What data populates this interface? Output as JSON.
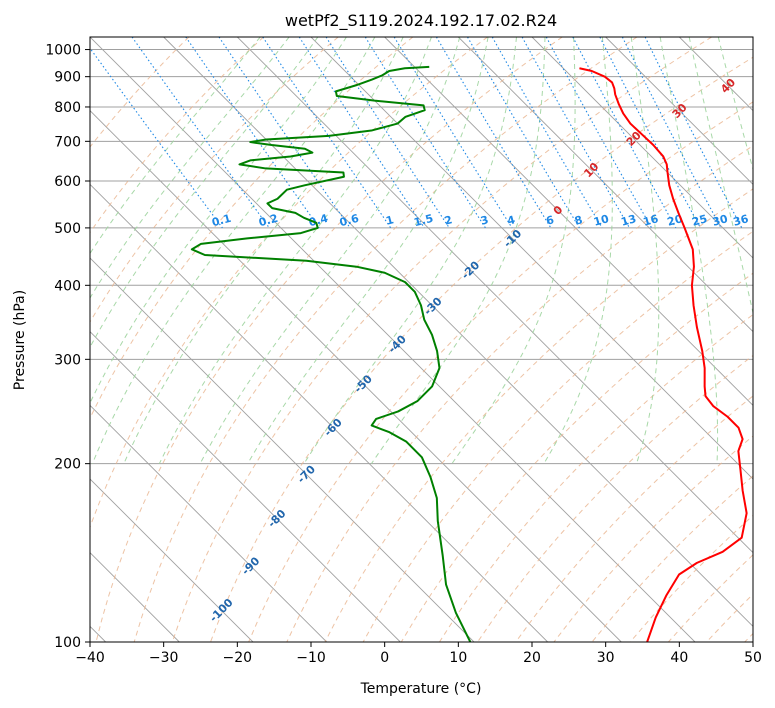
{
  "chart_data": {
    "type": "line",
    "title": "wetPf2_S119.2024.192.17.02.R24",
    "xlabel": "Temperature (°C)",
    "ylabel": "Pressure (hPa)",
    "xlim": [
      -40,
      50
    ],
    "ylim": [
      1050,
      100
    ],
    "yscale": "log",
    "skew": 35,
    "grid": true,
    "xticks": [
      -40,
      -30,
      -20,
      -10,
      0,
      10,
      20,
      30,
      40,
      50
    ],
    "yticks": [
      100,
      200,
      300,
      400,
      500,
      600,
      700,
      800,
      900,
      1000
    ],
    "colors": {
      "temperature": "#ff0000",
      "dewpoint": "#008000",
      "dry_adiabat": "#e8b48f",
      "moist_adiabat": "#9fd49f",
      "mixing_ratio": "#1e88e5",
      "grid": "#a0a0a0",
      "label_dry": "#2166ac",
      "label_moist": "#d62728",
      "label_mixing": "#1e88e5"
    },
    "series": [
      {
        "points": [
          [
            930,
            22.2
          ],
          [
            920,
            23.5
          ],
          [
            900,
            24.5
          ],
          [
            880,
            24.7
          ],
          [
            860,
            24.2
          ],
          [
            840,
            23.5
          ],
          [
            810,
            22.7
          ],
          [
            780,
            22.0
          ],
          [
            750,
            21.6
          ],
          [
            720,
            21.7
          ],
          [
            690,
            21.8
          ],
          [
            660,
            21.6
          ],
          [
            640,
            21.0
          ],
          [
            620,
            20.0
          ],
          [
            590,
            18.5
          ],
          [
            560,
            17.2
          ],
          [
            530,
            16.0
          ],
          [
            500,
            14.8
          ],
          [
            460,
            13.0
          ],
          [
            430,
            10.8
          ],
          [
            400,
            8.0
          ],
          [
            370,
            5.5
          ],
          [
            340,
            3.0
          ],
          [
            310,
            0.5
          ],
          [
            290,
            -1.5
          ],
          [
            270,
            -4.0
          ],
          [
            260,
            -5.2
          ],
          [
            250,
            -5.5
          ],
          [
            240,
            -5.0
          ],
          [
            230,
            -5.0
          ],
          [
            220,
            -6.0
          ],
          [
            210,
            -8.2
          ],
          [
            195,
            -10.5
          ],
          [
            180,
            -13.0
          ],
          [
            165,
            -15.5
          ],
          [
            150,
            -19.5
          ],
          [
            142,
            -24.0
          ],
          [
            136,
            -29.0
          ],
          [
            130,
            -33.0
          ],
          [
            120,
            -37.5
          ],
          [
            110,
            -42.0
          ],
          [
            100,
            -46.5
          ]
        ]
      },
      {
        "points": [
          [
            935,
            2.0
          ],
          [
            930,
            -1.5
          ],
          [
            920,
            -4.0
          ],
          [
            905,
            -5.5
          ],
          [
            890,
            -7.5
          ],
          [
            870,
            -10.5
          ],
          [
            850,
            -14.0
          ],
          [
            835,
            -14.5
          ],
          [
            820,
            -10.0
          ],
          [
            805,
            -4.0
          ],
          [
            790,
            -4.5
          ],
          [
            770,
            -8.0
          ],
          [
            750,
            -10.0
          ],
          [
            730,
            -14.5
          ],
          [
            715,
            -21.0
          ],
          [
            705,
            -30.0
          ],
          [
            698,
            -32.5
          ],
          [
            690,
            -30.0
          ],
          [
            680,
            -26.0
          ],
          [
            670,
            -25.5
          ],
          [
            660,
            -29.0
          ],
          [
            650,
            -35.0
          ],
          [
            640,
            -37.0
          ],
          [
            630,
            -34.0
          ],
          [
            620,
            -24.0
          ],
          [
            610,
            -24.5
          ],
          [
            590,
            -31.0
          ],
          [
            580,
            -34.0
          ],
          [
            560,
            -36.5
          ],
          [
            550,
            -38.5
          ],
          [
            540,
            -38.5
          ],
          [
            530,
            -36.0
          ],
          [
            520,
            -35.5
          ],
          [
            510,
            -34.5
          ],
          [
            500,
            -35.0
          ],
          [
            490,
            -38.0
          ],
          [
            480,
            -46.0
          ],
          [
            470,
            -53.0
          ],
          [
            460,
            -55.0
          ],
          [
            450,
            -54.0
          ],
          [
            440,
            -41.0
          ],
          [
            430,
            -35.0
          ],
          [
            420,
            -32.0
          ],
          [
            405,
            -30.5
          ],
          [
            390,
            -30.5
          ],
          [
            370,
            -31.5
          ],
          [
            350,
            -33.0
          ],
          [
            330,
            -34.0
          ],
          [
            310,
            -35.5
          ],
          [
            290,
            -37.5
          ],
          [
            270,
            -41.0
          ],
          [
            255,
            -45.0
          ],
          [
            245,
            -49.0
          ],
          [
            238,
            -53.0
          ],
          [
            232,
            -54.5
          ],
          [
            226,
            -53.0
          ],
          [
            218,
            -52.0
          ],
          [
            205,
            -52.0
          ],
          [
            190,
            -53.5
          ],
          [
            175,
            -55.5
          ],
          [
            160,
            -58.5
          ],
          [
            140,
            -62.5
          ],
          [
            125,
            -66.0
          ],
          [
            112,
            -68.5
          ],
          [
            100,
            -70.5
          ]
        ]
      }
    ],
    "dry_adiabat_labels": [
      {
        "text": "-100",
        "p": 112,
        "t": -100
      },
      {
        "text": "-90",
        "p": 133,
        "t": -90
      },
      {
        "text": "-80",
        "p": 160,
        "t": -80
      },
      {
        "text": "-70",
        "p": 190,
        "t": -70
      },
      {
        "text": "-60",
        "p": 228,
        "t": -60
      },
      {
        "text": "-50",
        "p": 270,
        "t": -50
      },
      {
        "text": "-40",
        "p": 315,
        "t": -40
      },
      {
        "text": "-30",
        "p": 365,
        "t": -30
      },
      {
        "text": "-20",
        "p": 420,
        "t": -20
      },
      {
        "text": "-10",
        "p": 475,
        "t": -10
      }
    ],
    "moist_adiabat_labels": [
      {
        "text": "0",
        "p": 530,
        "t": 0
      },
      {
        "text": "10",
        "p": 620,
        "t": 10
      },
      {
        "text": "20",
        "p": 700,
        "t": 20
      },
      {
        "text": "30",
        "p": 780,
        "t": 30
      },
      {
        "text": "40",
        "p": 860,
        "t": 40
      }
    ],
    "mixing_ratio_labels": [
      {
        "text": "0.1",
        "w": 0.1
      },
      {
        "text": "0.2",
        "w": 0.2
      },
      {
        "text": "0.4",
        "w": 0.4
      },
      {
        "text": "0.6",
        "w": 0.6
      },
      {
        "text": "1",
        "w": 1
      },
      {
        "text": "1.5",
        "w": 1.5
      },
      {
        "text": "2",
        "w": 2
      },
      {
        "text": "3",
        "w": 3
      },
      {
        "text": "4",
        "w": 4
      },
      {
        "text": "6",
        "w": 6
      },
      {
        "text": "8",
        "w": 8
      },
      {
        "text": "10",
        "w": 10
      },
      {
        "text": "13",
        "w": 13
      },
      {
        "text": "16",
        "w": 16
      },
      {
        "text": "20",
        "w": 20
      },
      {
        "text": "25",
        "w": 25
      },
      {
        "text": "30",
        "w": 30
      },
      {
        "text": "36",
        "w": 36
      }
    ],
    "mixing_ratio_label_pressure": 500
  }
}
